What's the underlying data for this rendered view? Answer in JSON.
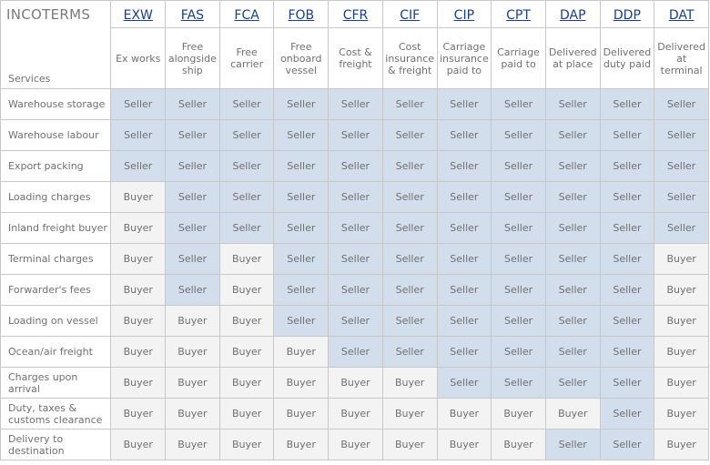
{
  "title": "INCOTERMS",
  "services_header": "Services",
  "colors": {
    "seller_bg": "#d2deec",
    "buyer_bg": "#f3f3f3",
    "link": "#1a3d8f"
  },
  "terms": [
    {
      "code": "EXW",
      "desc": "Ex works"
    },
    {
      "code": "FAS",
      "desc": "Free alongside ship"
    },
    {
      "code": "FCA",
      "desc": "Free carrier"
    },
    {
      "code": "FOB",
      "desc": "Free onboard vessel"
    },
    {
      "code": "CFR",
      "desc": "Cost & freight"
    },
    {
      "code": "CIF",
      "desc": "Cost insurance & freight"
    },
    {
      "code": "CIP",
      "desc": "Carriage insurance paid to"
    },
    {
      "code": "CPT",
      "desc": "Carriage paid to"
    },
    {
      "code": "DAP",
      "desc": "Delivered at place"
    },
    {
      "code": "DDP",
      "desc": "Delivered duty paid"
    },
    {
      "code": "DAT",
      "desc": "Delivered at terminal"
    }
  ],
  "rows": [
    {
      "service": "Warehouse storage",
      "cells": [
        "Seller",
        "Seller",
        "Seller",
        "Seller",
        "Seller",
        "Seller",
        "Seller",
        "Seller",
        "Seller",
        "Seller",
        "Seller"
      ]
    },
    {
      "service": "Warehouse labour",
      "cells": [
        "Seller",
        "Seller",
        "Seller",
        "Seller",
        "Seller",
        "Seller",
        "Seller",
        "Seller",
        "Seller",
        "Seller",
        "Seller"
      ]
    },
    {
      "service": "Export packing",
      "cells": [
        "Seller",
        "Seller",
        "Seller",
        "Seller",
        "Seller",
        "Seller",
        "Seller",
        "Seller",
        "Seller",
        "Seller",
        "Seller"
      ]
    },
    {
      "service": "Loading charges",
      "cells": [
        "Buyer",
        "Seller",
        "Seller",
        "Seller",
        "Seller",
        "Seller",
        "Seller",
        "Seller",
        "Seller",
        "Seller",
        "Seller"
      ]
    },
    {
      "service": "Inland freight buyer",
      "cells": [
        "Buyer",
        "Seller",
        "Seller",
        "Seller",
        "Seller",
        "Seller",
        "Seller",
        "Seller",
        "Seller",
        "Seller",
        "Seller"
      ]
    },
    {
      "service": "Terminal charges",
      "cells": [
        "Buyer",
        "Seller",
        "Buyer",
        "Seller",
        "Seller",
        "Seller",
        "Seller",
        "Seller",
        "Seller",
        "Seller",
        "Buyer"
      ]
    },
    {
      "service": "Forwarder's fees",
      "cells": [
        "Buyer",
        "Seller",
        "Buyer",
        "Seller",
        "Seller",
        "Seller",
        "Seller",
        "Seller",
        "Seller",
        "Seller",
        "Buyer"
      ]
    },
    {
      "service": "Loading on vessel",
      "cells": [
        "Buyer",
        "Buyer",
        "Buyer",
        "Seller",
        "Seller",
        "Seller",
        "Seller",
        "Seller",
        "Seller",
        "Seller",
        "Buyer"
      ]
    },
    {
      "service": "Ocean/air freight",
      "cells": [
        "Buyer",
        "Buyer",
        "Buyer",
        "Buyer",
        "Seller",
        "Seller",
        "Seller",
        "Seller",
        "Seller",
        "Seller",
        "Buyer"
      ]
    },
    {
      "service": "Charges upon arrival",
      "cells": [
        "Buyer",
        "Buyer",
        "Buyer",
        "Buyer",
        "Buyer",
        "Buyer",
        "Seller",
        "Seller",
        "Seller",
        "Seller",
        "Buyer"
      ]
    },
    {
      "service": "Duty, taxes & customs clearance",
      "cells": [
        "Buyer",
        "Buyer",
        "Buyer",
        "Buyer",
        "Buyer",
        "Buyer",
        "Buyer",
        "Buyer",
        "Buyer",
        "Seller",
        "Buyer"
      ]
    },
    {
      "service": "Delivery to destination",
      "cells": [
        "Buyer",
        "Buyer",
        "Buyer",
        "Buyer",
        "Buyer",
        "Buyer",
        "Buyer",
        "Buyer",
        "Seller",
        "Seller",
        "Buyer"
      ]
    }
  ]
}
